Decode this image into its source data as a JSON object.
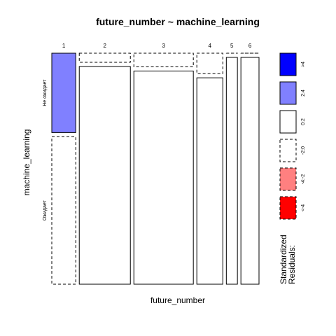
{
  "chart_data": {
    "type": "mosaic",
    "title": "future_number ~ machine_learning",
    "xlabel": "future_number",
    "ylabel": "machine_learning",
    "x_categories": [
      "1",
      "2",
      "3",
      "4",
      "5",
      "6"
    ],
    "y_categories": [
      "Не ожидает",
      "Ожидает"
    ],
    "x_proportions": [
      0.106,
      0.226,
      0.263,
      0.115,
      0.049,
      0.08
    ],
    "cells": [
      {
        "x": "1",
        "y": "Не ожидает",
        "share": 0.35,
        "residual_band": "2:4"
      },
      {
        "x": "1",
        "y": "Ожидает",
        "share": 0.65,
        "residual_band": "-2:0"
      },
      {
        "x": "2",
        "y": "Не ожидает",
        "share": 0.04,
        "residual_band": "-2:0"
      },
      {
        "x": "2",
        "y": "Ожидает",
        "share": 0.96,
        "residual_band": "0:2"
      },
      {
        "x": "3",
        "y": "Не ожидает",
        "share": 0.06,
        "residual_band": "-2:0"
      },
      {
        "x": "3",
        "y": "Ожидает",
        "share": 0.94,
        "residual_band": "0:2"
      },
      {
        "x": "4",
        "y": "Не ожидает",
        "share": 0.09,
        "residual_band": "-2:0"
      },
      {
        "x": "4",
        "y": "Ожидает",
        "share": 0.91,
        "residual_band": "0:2"
      },
      {
        "x": "5",
        "y": "Не ожидает",
        "share": 0.0,
        "residual_band": "-2:0"
      },
      {
        "x": "5",
        "y": "Ожидает",
        "share": 1.0,
        "residual_band": "0:2"
      },
      {
        "x": "6",
        "y": "Не ожидает",
        "share": 0.0,
        "residual_band": "-2:0"
      },
      {
        "x": "6",
        "y": "Ожидает",
        "share": 1.0,
        "residual_band": "0:2"
      }
    ],
    "legend": {
      "title_line1": "Standardized",
      "title_line2": "Residuals:",
      "position": "right",
      "items": [
        {
          "label": ">4",
          "color": "#0000ff",
          "dashed": false
        },
        {
          "label": "2:4",
          "color": "#8080ff",
          "dashed": false
        },
        {
          "label": "0:2",
          "color": "#ffffff",
          "dashed": false
        },
        {
          "label": "-2:0",
          "color": "#ffffff",
          "dashed": true
        },
        {
          "label": "-4:-2",
          "color": "#ff8080",
          "dashed": true
        },
        {
          "label": "<-4",
          "color": "#ff0000",
          "dashed": true
        }
      ]
    },
    "colors": {
      "2:4": "#8080ff",
      "0:2": "#ffffff",
      "-2:0": "#ffffff"
    }
  }
}
